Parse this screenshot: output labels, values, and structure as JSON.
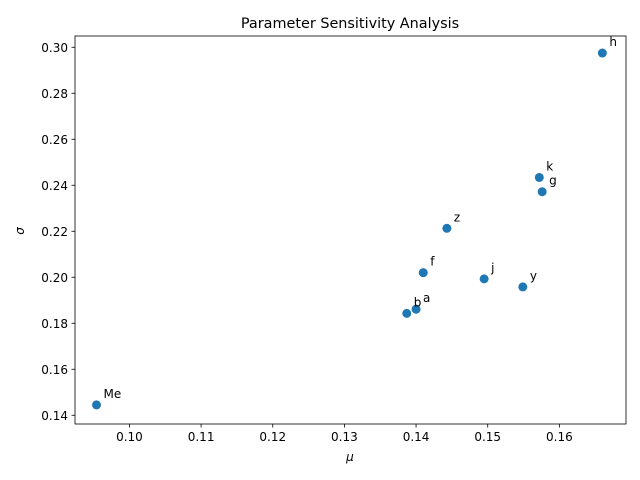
{
  "chart_data": {
    "type": "scatter",
    "title": "Parameter Sensitivity Analysis",
    "xlabel": "μ",
    "ylabel": "σ",
    "xlim": [
      0.0924,
      0.1693
    ],
    "ylim": [
      0.1362,
      0.3049
    ],
    "xticks": [
      0.1,
      0.11,
      0.12,
      0.13,
      0.14,
      0.15,
      0.16
    ],
    "xtick_labels": [
      "0.10",
      "0.11",
      "0.12",
      "0.13",
      "0.14",
      "0.15",
      "0.16"
    ],
    "yticks": [
      0.14,
      0.16,
      0.18,
      0.2,
      0.22,
      0.24,
      0.26,
      0.28,
      0.3
    ],
    "ytick_labels": [
      "0.14",
      "0.16",
      "0.18",
      "0.20",
      "0.22",
      "0.24",
      "0.26",
      "0.28",
      "0.30"
    ],
    "grid": false,
    "marker_color": "#1f77b4",
    "points": [
      {
        "label": "Me",
        "x": 0.0954,
        "y": 0.1445
      },
      {
        "label": "b",
        "x": 0.1387,
        "y": 0.1843
      },
      {
        "label": "a",
        "x": 0.14,
        "y": 0.1861
      },
      {
        "label": "f",
        "x": 0.141,
        "y": 0.202
      },
      {
        "label": "z",
        "x": 0.1443,
        "y": 0.2213
      },
      {
        "label": "j",
        "x": 0.1495,
        "y": 0.1993
      },
      {
        "label": "y",
        "x": 0.1549,
        "y": 0.1958
      },
      {
        "label": "k",
        "x": 0.1572,
        "y": 0.2434
      },
      {
        "label": "g",
        "x": 0.1576,
        "y": 0.2372
      },
      {
        "label": "h",
        "x": 0.166,
        "y": 0.2975
      }
    ]
  }
}
